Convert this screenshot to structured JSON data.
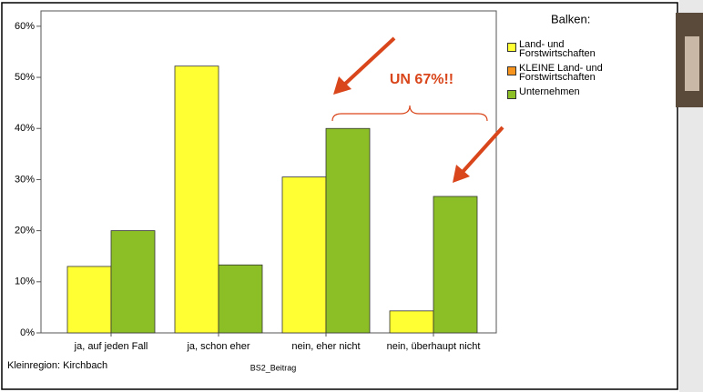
{
  "chart_data": {
    "type": "bar",
    "categories": [
      "ja, auf jeden Fall",
      "ja, schon eher",
      "nein, eher nicht",
      "nein, überhaupt nicht"
    ],
    "series": [
      {
        "name": "Land- und Forstwirtschaften",
        "color": "#ffff33",
        "values": [
          13,
          52.2,
          30.5,
          4.3
        ]
      },
      {
        "name": "KLEINE Land- und Forstwirtschaften",
        "color": "#f7941d",
        "values": [
          null,
          null,
          null,
          null
        ]
      },
      {
        "name": "Unternehmen",
        "color": "#8cbf26",
        "values": [
          20,
          13.3,
          40,
          26.7
        ]
      }
    ],
    "ylim": [
      0,
      63
    ],
    "yticks": [
      {
        "value": 0,
        "label": "0%"
      },
      {
        "value": 10,
        "label": "10%"
      },
      {
        "value": 20,
        "label": "20%"
      },
      {
        "value": 30,
        "label": "30%"
      },
      {
        "value": 40,
        "label": "40%"
      },
      {
        "value": 50,
        "label": "50%"
      },
      {
        "value": 60,
        "label": "60%"
      }
    ],
    "legend_title": "Balken:",
    "xlabel": "BS2_Beitrag",
    "footnote": "Kleinregion: Kirchbach",
    "annotation": "UN 67%!!"
  }
}
